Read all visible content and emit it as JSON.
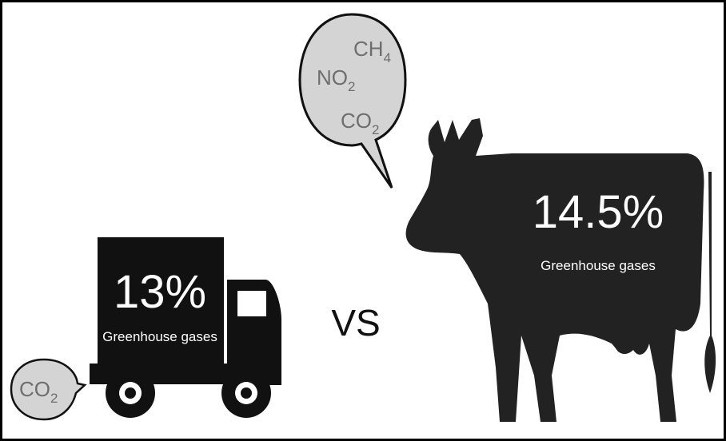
{
  "cow": {
    "bubble": [
      {
        "base": "CH",
        "sub": "4"
      },
      {
        "base": "NO",
        "sub": "2"
      },
      {
        "base": "CO",
        "sub": "2"
      }
    ],
    "percent": "14.5%",
    "caption": "Greenhouse gases"
  },
  "comparison": "VS",
  "truck": {
    "percent": "13%",
    "caption": "Greenhouse gases",
    "bubble": [
      {
        "base": "CO",
        "sub": "2"
      }
    ]
  }
}
